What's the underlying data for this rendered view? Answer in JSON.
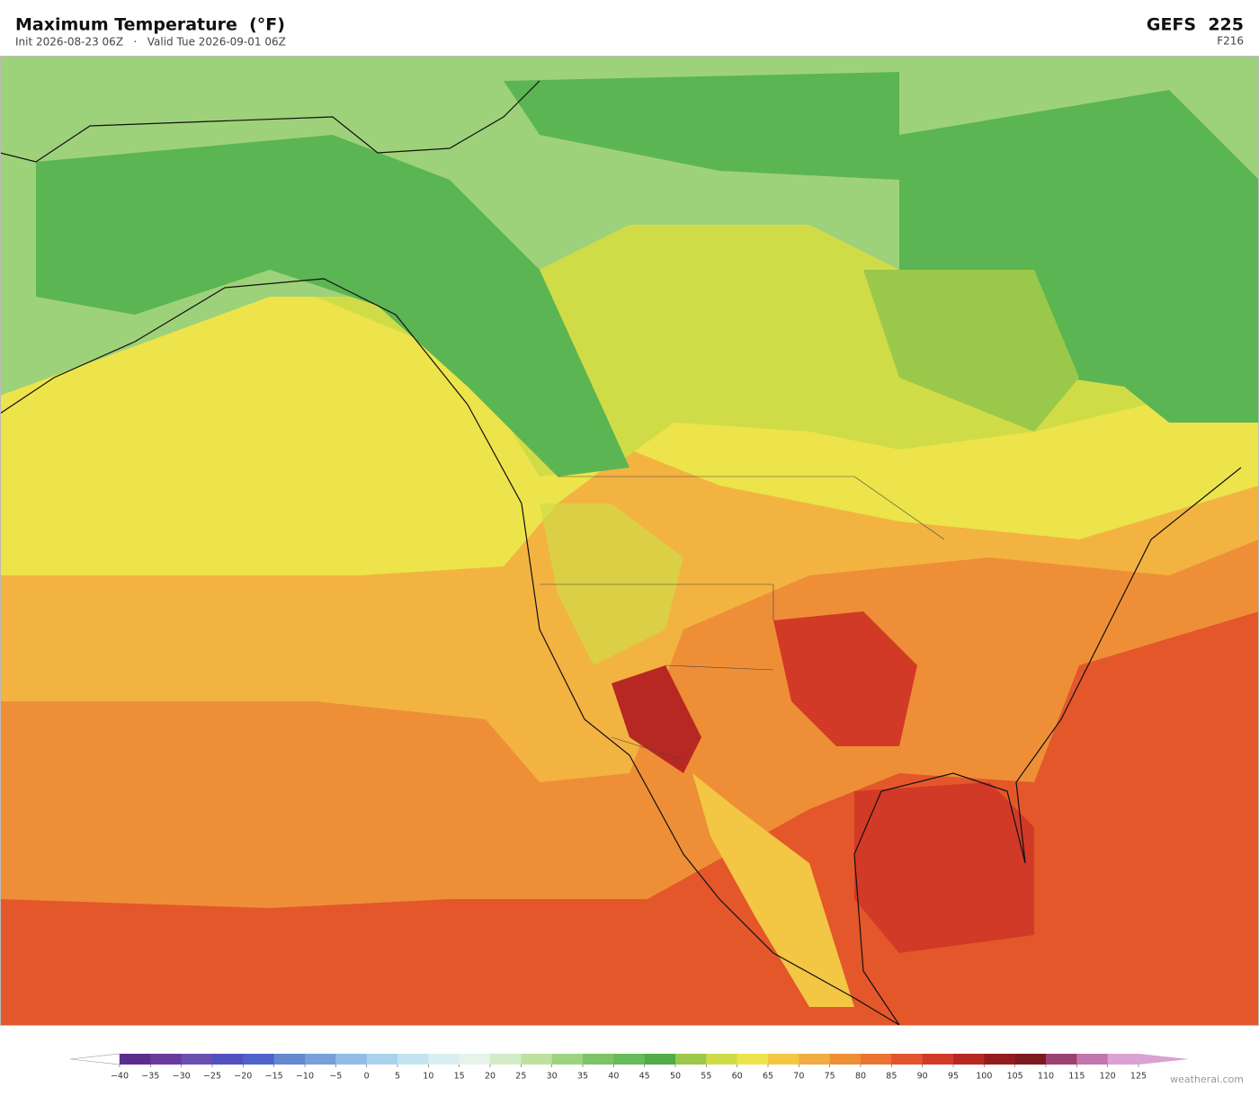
{
  "header": {
    "title": "Maximum Temperature  (°F)",
    "subtitle": "Init 2026-08-23 06Z   ·   Valid Tue 2026-09-01 06Z",
    "model": "GEFS  225",
    "forecast_hour": "F216"
  },
  "colorbar": {
    "ticks": [
      {
        "value": -40,
        "label": "−40"
      },
      {
        "value": -35,
        "label": "−35"
      },
      {
        "value": -30,
        "label": "−30"
      },
      {
        "value": -25,
        "label": "−25"
      },
      {
        "value": -20,
        "label": "−20"
      },
      {
        "value": -15,
        "label": "−15"
      },
      {
        "value": -10,
        "label": "−10"
      },
      {
        "value": -5,
        "label": "−5"
      },
      0,
      5,
      10,
      15,
      20,
      25,
      30,
      35,
      40,
      45,
      50,
      55,
      60,
      65,
      70,
      75,
      80,
      85,
      90,
      95,
      100,
      105,
      110,
      115,
      120,
      125
    ],
    "colors": [
      "#5b2d8f",
      "#6a3a9e",
      "#6a4fb0",
      "#5150c0",
      "#4f62c9",
      "#6388d0",
      "#77a0d9",
      "#90bde4",
      "#a9d2ec",
      "#c3e3f0",
      "#d9eef0",
      "#e5f3ea",
      "#d2ecc7",
      "#bde2a0",
      "#9dd47f",
      "#7dc466",
      "#66bb5a",
      "#4fac47",
      "#9ac84a",
      "#d0dc47",
      "#ece44a",
      "#f3c644",
      "#f1ad3f",
      "#ee8f37",
      "#eb7233",
      "#e2542b",
      "#d13a26",
      "#b82822",
      "#951c1e",
      "#7d1a1f",
      "#9c4271",
      "#c176ad",
      "#d9a2d2"
    ],
    "under_color": "#ffffff",
    "over_color": "#d9a2d2"
  },
  "watermark": "weatherai.com"
}
